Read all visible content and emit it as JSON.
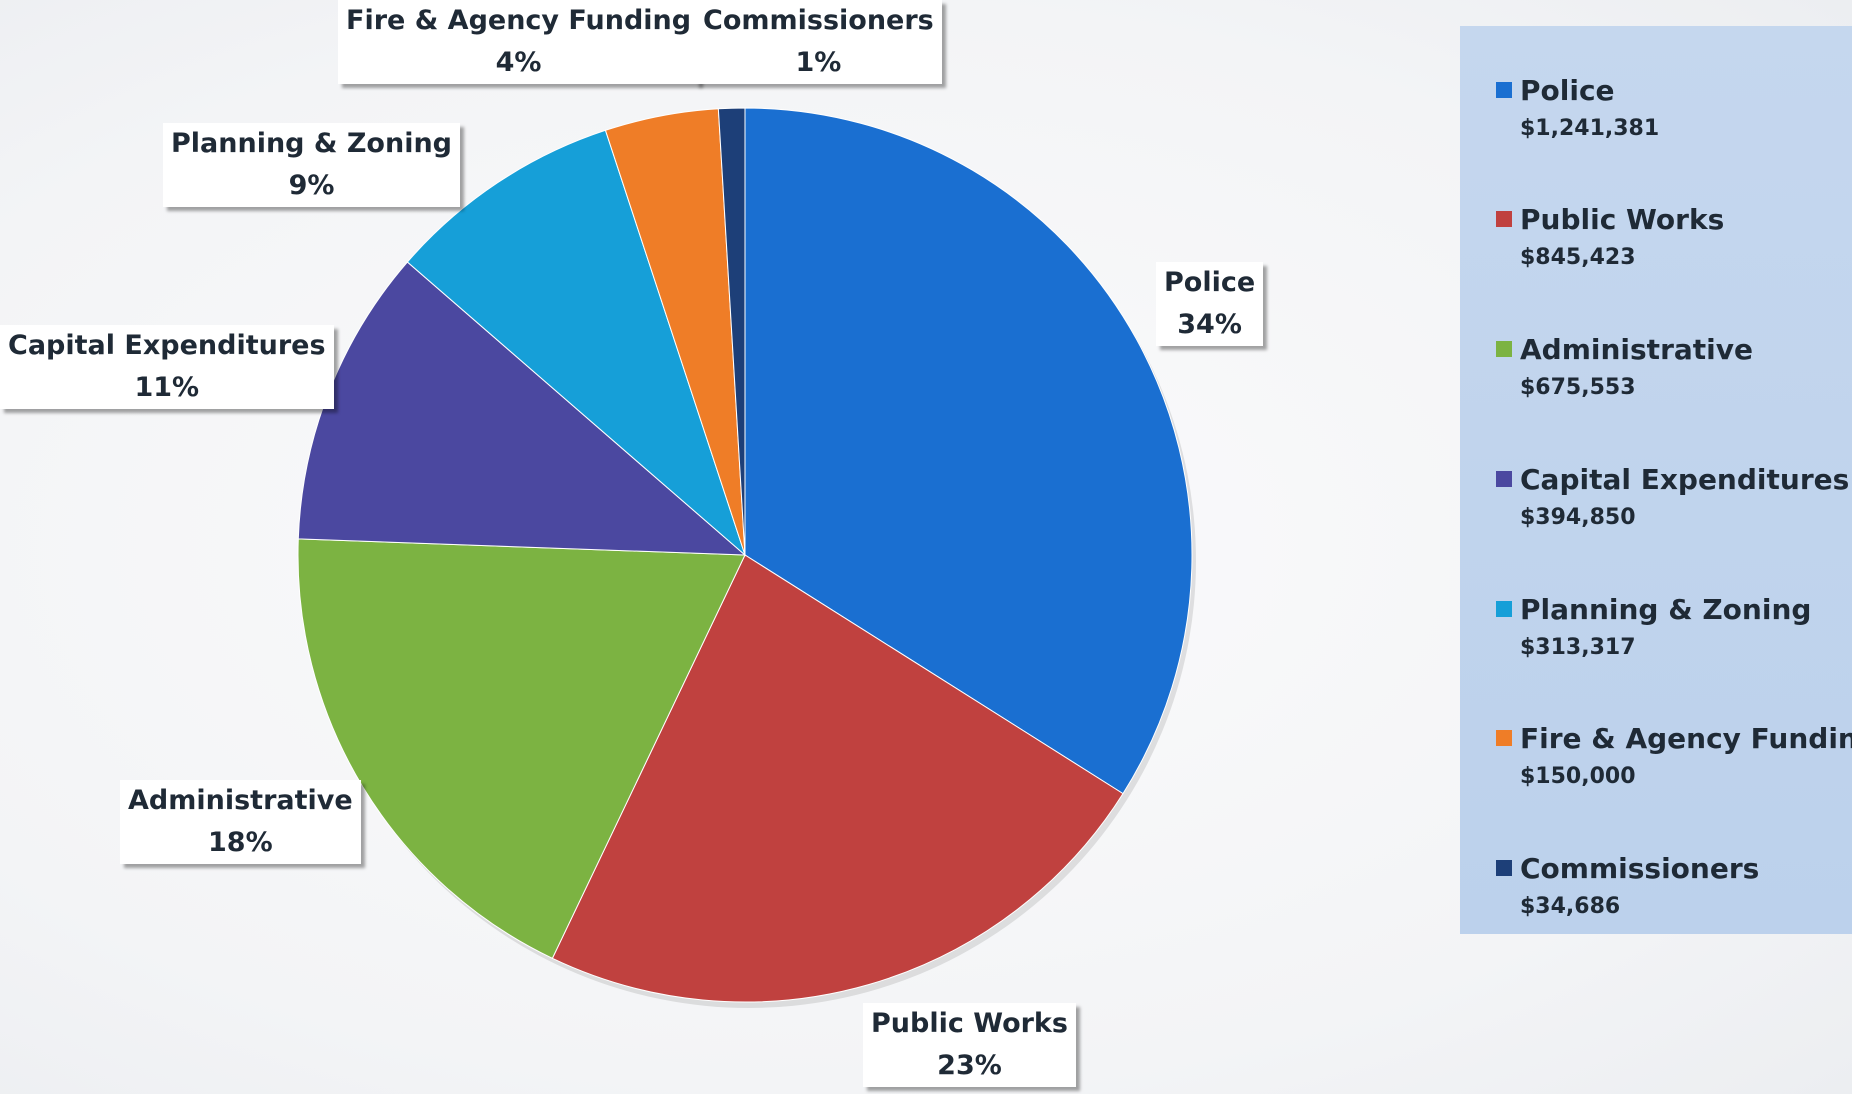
{
  "chart_data": {
    "type": "pie",
    "title": "",
    "slices": [
      {
        "name": "Police",
        "value": 1241381,
        "amount_label": "$1,241,381",
        "percent_label": "34%",
        "color": "#1a6fd1"
      },
      {
        "name": "Public Works",
        "value": 845423,
        "amount_label": "$845,423",
        "percent_label": "23%",
        "color": "#c0413f"
      },
      {
        "name": "Administrative",
        "value": 675553,
        "amount_label": "$675,553",
        "percent_label": "18%",
        "color": "#7cb342"
      },
      {
        "name": "Capital Expenditures",
        "value": 394850,
        "amount_label": "$394,850",
        "percent_label": "11%",
        "color": "#4b48a0"
      },
      {
        "name": "Planning & Zoning",
        "value": 313317,
        "amount_label": "$313,317",
        "percent_label": "9%",
        "color": "#169fd8"
      },
      {
        "name": "Fire & Agency Funding",
        "value": 150000,
        "amount_label": "$150,000",
        "percent_label": "4%",
        "color": "#ef7d27"
      },
      {
        "name": "Commissioners",
        "value": 34686,
        "amount_label": "$34,686",
        "percent_label": "1%",
        "color": "#1d3f78"
      }
    ],
    "legend_position": "right"
  }
}
